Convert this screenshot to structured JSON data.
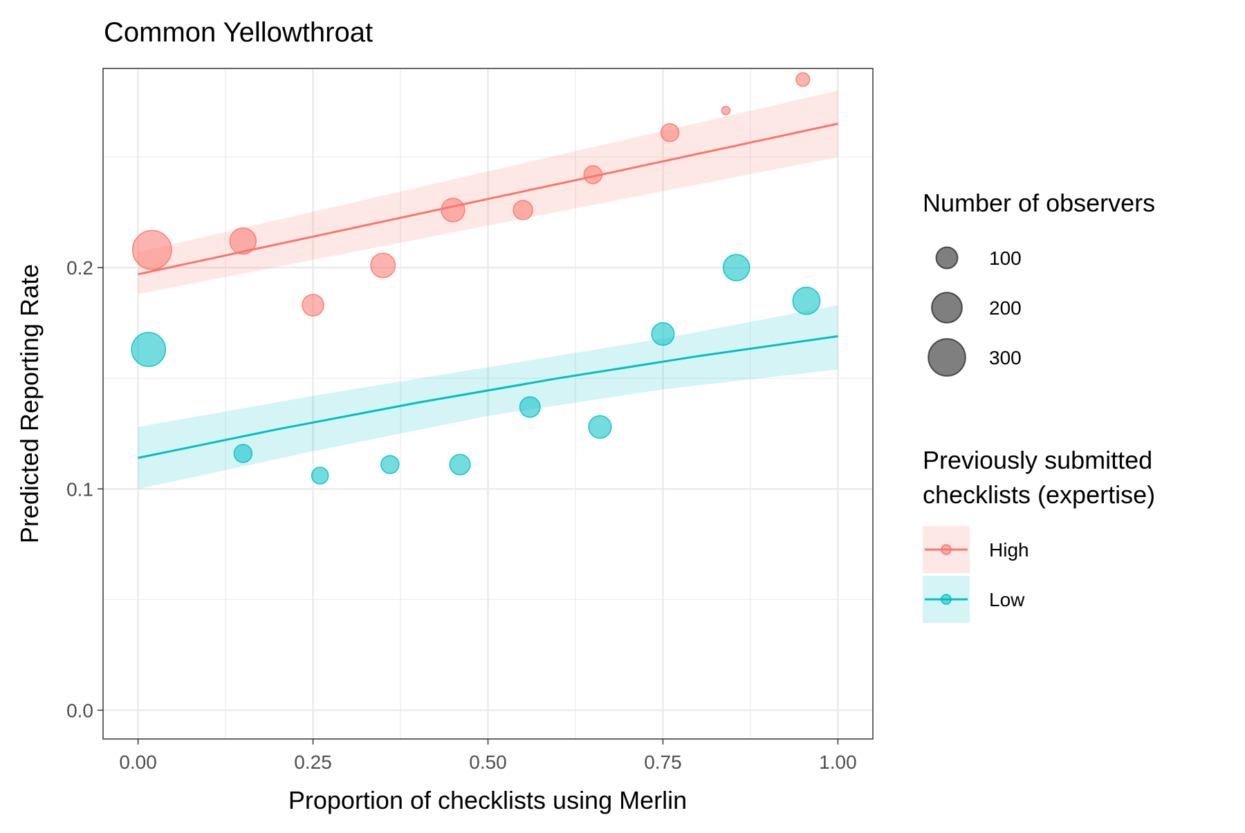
{
  "chart_data": {
    "type": "scatter",
    "title": "Common Yellowthroat",
    "xlabel": "Proportion of checklists using Merlin",
    "ylabel": "Predicted Reporting Rate",
    "xlim": [
      -0.05,
      1.05
    ],
    "ylim": [
      -0.013,
      0.29
    ],
    "x_ticks": [
      0,
      0.25,
      0.5,
      0.75,
      1
    ],
    "x_tick_labels": [
      "0.00",
      "0.25",
      "0.50",
      "0.75",
      "1.00"
    ],
    "y_ticks": [
      0,
      0.1,
      0.2
    ],
    "y_tick_labels": [
      "0.0",
      "0.1",
      "0.2"
    ],
    "x_minor_grid": [
      0.125,
      0.375,
      0.625,
      0.875
    ],
    "y_minor_grid": [
      0.05,
      0.15,
      0.25
    ],
    "grid": true,
    "legend_placement": "right",
    "size_legend": {
      "title": "Number of observers",
      "entries": [
        {
          "label": "100",
          "value": 100
        },
        {
          "label": "200",
          "value": 200
        },
        {
          "label": "300",
          "value": 300
        }
      ]
    },
    "color_legend": {
      "title_lines": [
        "Previously submitted",
        "checklists (expertise)"
      ]
    },
    "series": [
      {
        "name": "High",
        "color": "#F8766D",
        "fill": "#FDE0DD",
        "points": [
          {
            "x": 0.02,
            "y": 0.208,
            "n": 330
          },
          {
            "x": 0.15,
            "y": 0.212,
            "n": 150
          },
          {
            "x": 0.25,
            "y": 0.183,
            "n": 100
          },
          {
            "x": 0.35,
            "y": 0.201,
            "n": 130
          },
          {
            "x": 0.45,
            "y": 0.226,
            "n": 120
          },
          {
            "x": 0.55,
            "y": 0.226,
            "n": 80
          },
          {
            "x": 0.65,
            "y": 0.242,
            "n": 70
          },
          {
            "x": 0.76,
            "y": 0.261,
            "n": 70
          },
          {
            "x": 0.84,
            "y": 0.271,
            "n": 15
          },
          {
            "x": 0.95,
            "y": 0.285,
            "n": 40
          }
        ],
        "trend": {
          "x": [
            0,
            1
          ],
          "y": [
            0.197,
            0.265
          ]
        },
        "ribbon": {
          "x": [
            0,
            1
          ],
          "lower": [
            0.188,
            0.25
          ],
          "upper": [
            0.207,
            0.28
          ]
        }
      },
      {
        "name": "Low",
        "color": "#00BFC4",
        "fill": "#DDF3F4",
        "points": [
          {
            "x": 0.015,
            "y": 0.163,
            "n": 250
          },
          {
            "x": 0.15,
            "y": 0.116,
            "n": 70
          },
          {
            "x": 0.26,
            "y": 0.106,
            "n": 60
          },
          {
            "x": 0.36,
            "y": 0.111,
            "n": 70
          },
          {
            "x": 0.46,
            "y": 0.111,
            "n": 90
          },
          {
            "x": 0.56,
            "y": 0.137,
            "n": 90
          },
          {
            "x": 0.66,
            "y": 0.128,
            "n": 110
          },
          {
            "x": 0.75,
            "y": 0.17,
            "n": 110
          },
          {
            "x": 0.855,
            "y": 0.2,
            "n": 150
          },
          {
            "x": 0.955,
            "y": 0.185,
            "n": 160
          }
        ],
        "trend": {
          "x": [
            0,
            0.2,
            0.4,
            0.6,
            0.8,
            1
          ],
          "y": [
            0.114,
            0.127,
            0.139,
            0.15,
            0.16,
            0.169
          ]
        },
        "ribbon": {
          "x": [
            0,
            0.25,
            0.5,
            0.75,
            1
          ],
          "lower": [
            0.1,
            0.117,
            0.133,
            0.145,
            0.154
          ],
          "upper": [
            0.128,
            0.142,
            0.155,
            0.168,
            0.183
          ]
        }
      }
    ]
  }
}
